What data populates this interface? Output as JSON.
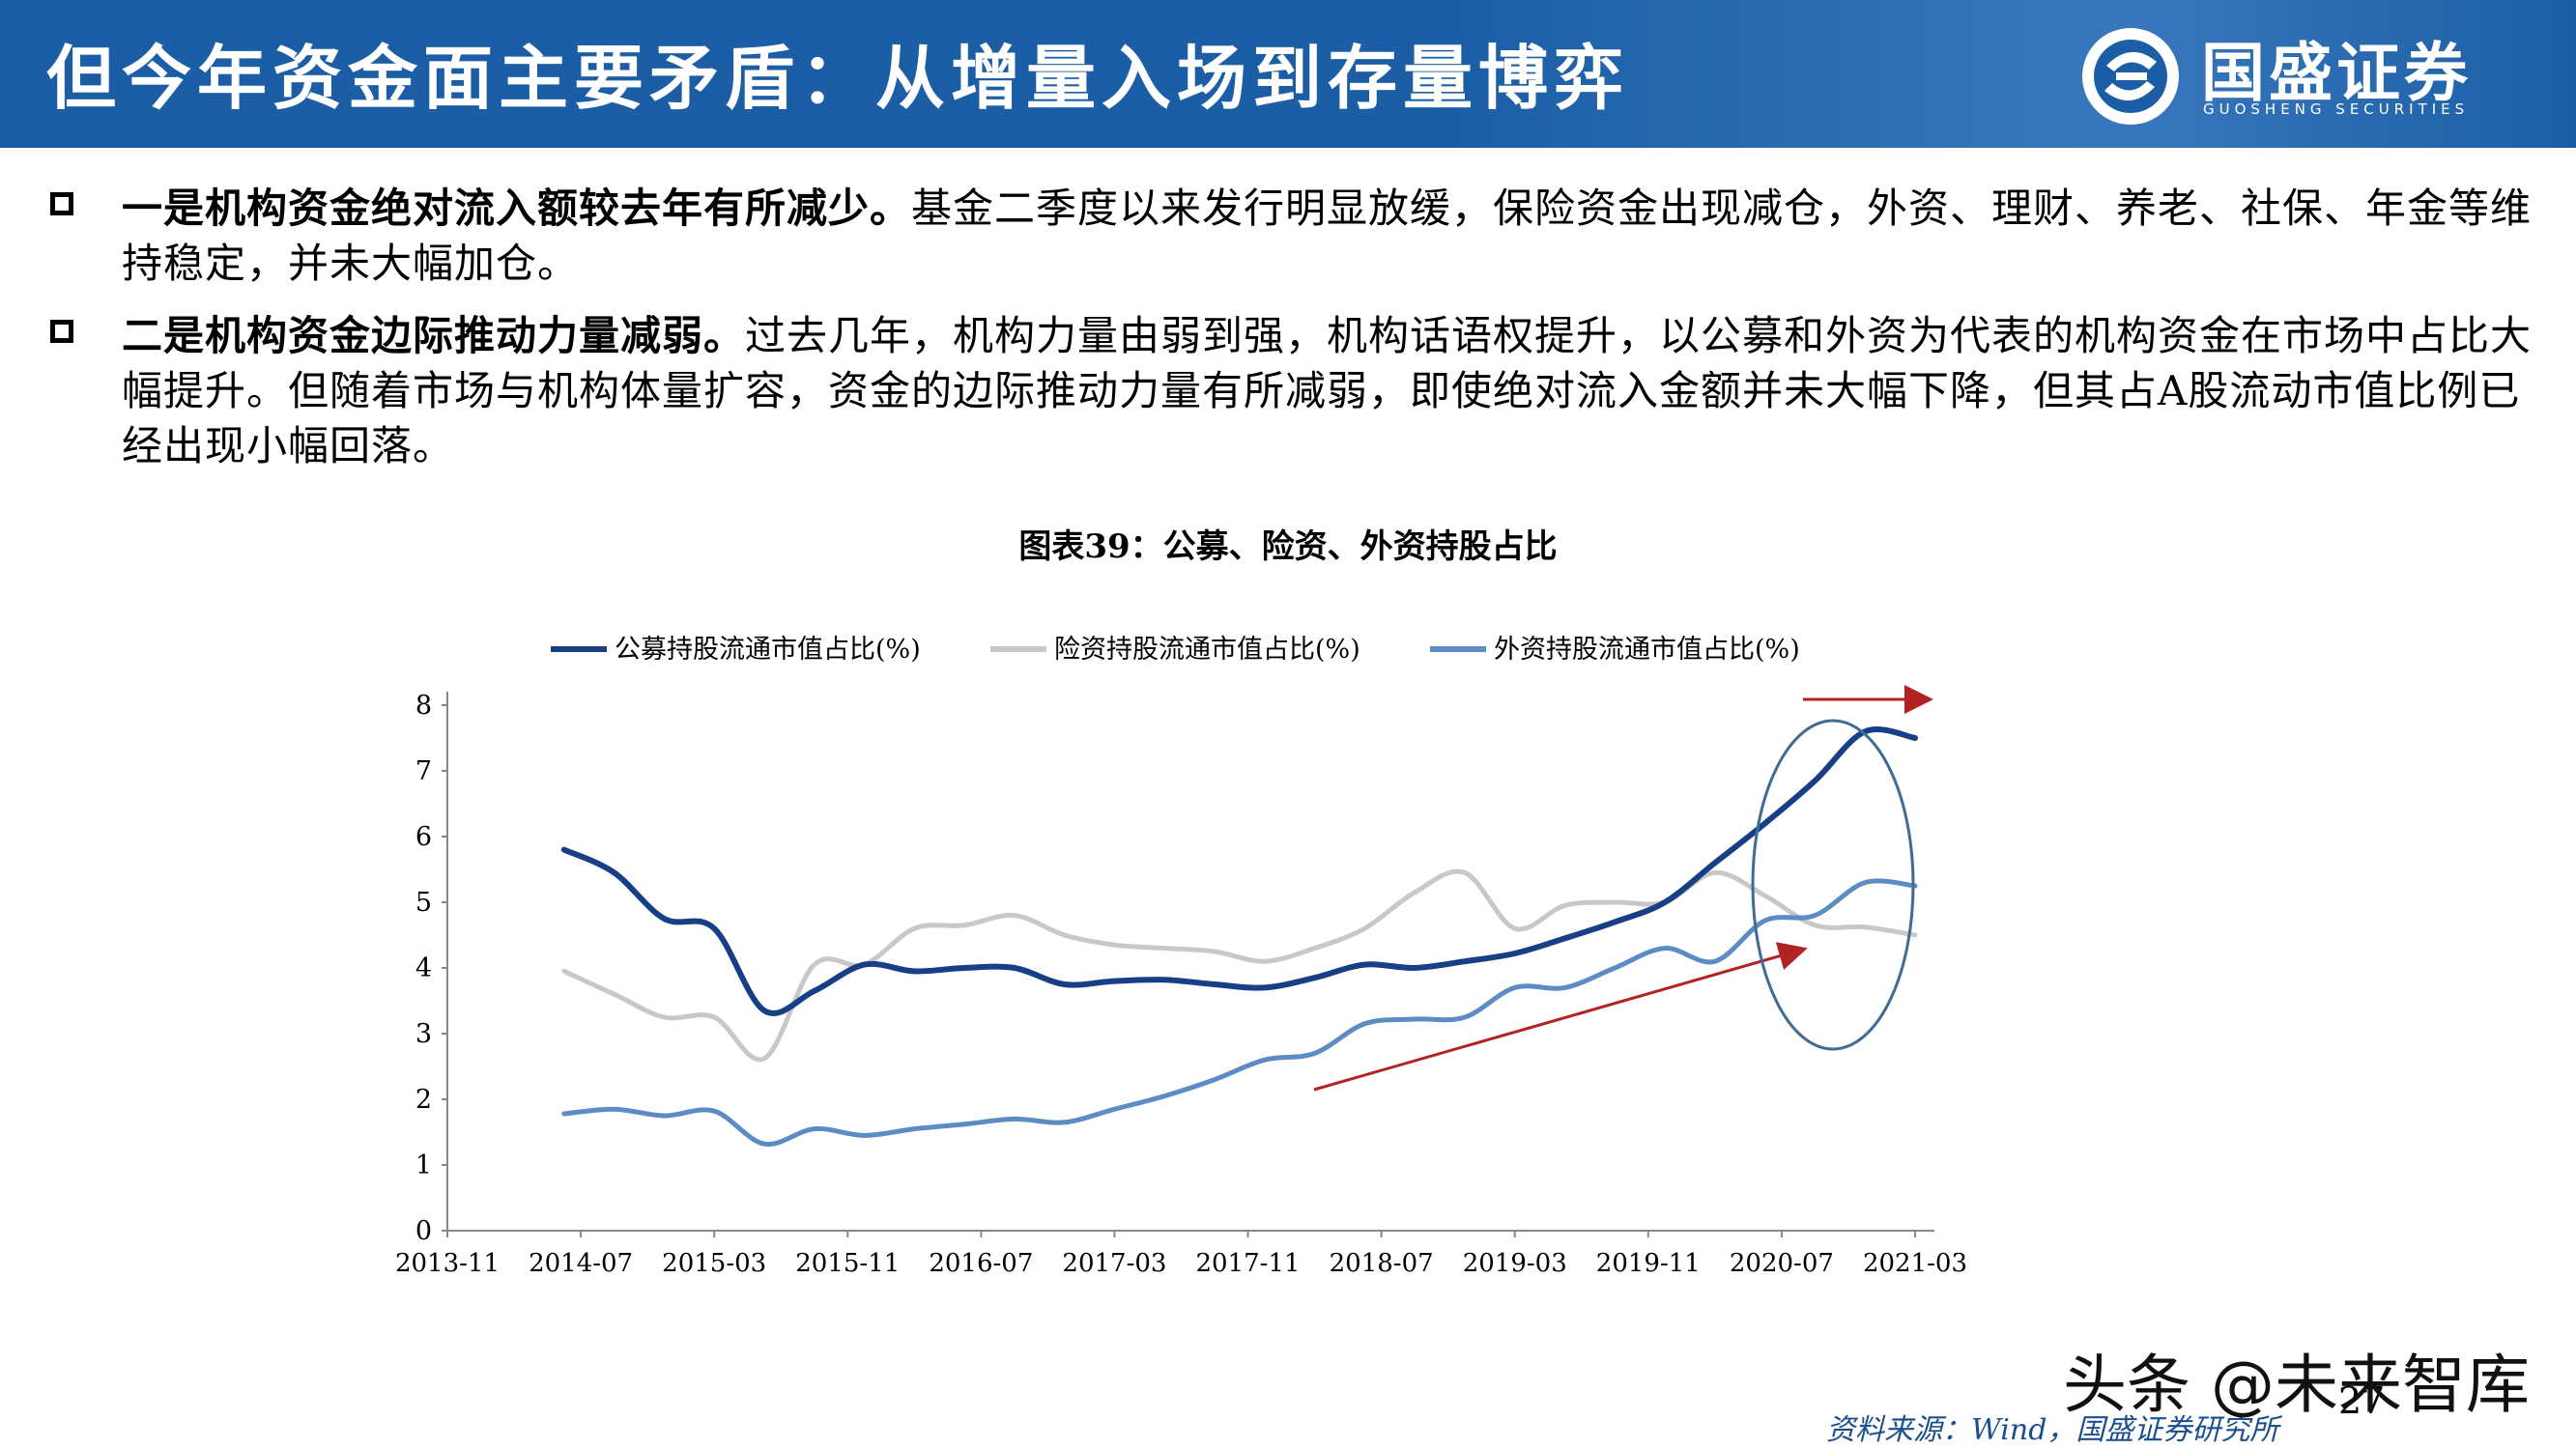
{
  "header": {
    "title": "但今年资金面主要矛盾：从增量入场到存量博弈",
    "logo_name": "国盛证券",
    "logo_sub": "GUOSHENG SECURITIES",
    "logo_icon": "guosheng-logo-icon"
  },
  "bullets": [
    {
      "bold": "一是机构资金绝对流入额较去年有所减少。",
      "text": "基金二季度以来发行明显放缓，保险资金出现减仓，外资、理财、养老、社保、年金等维持稳定，并未大幅加仓。"
    },
    {
      "bold": "二是机构资金边际推动力量减弱。",
      "text": "过去几年，机构力量由弱到强，机构话语权提升，以公募和外资为代表的机构资金在市场中占比大幅提升。但随着市场与机构体量扩容，资金的边际推动力量有所减弱，即使绝对流入金额并未大幅下降，但其占A股流动市值比例已经出现小幅回落。"
    }
  ],
  "figure_title": "图表39：公募、险资、外资持股占比",
  "chart_data": {
    "type": "line",
    "title": "图表39：公募、险资、外资持股占比",
    "xlabel": "",
    "ylabel": "",
    "ylim": [
      0,
      8
    ],
    "yticks": [
      "0",
      "1",
      "2",
      "3",
      "4",
      "5",
      "6",
      "7",
      "8"
    ],
    "xticks": [
      "2013-11",
      "2014-07",
      "2015-03",
      "2015-11",
      "2016-07",
      "2017-03",
      "2017-11",
      "2018-07",
      "2019-03",
      "2019-11",
      "2020-07",
      "2021-03"
    ],
    "x": [
      "2014-06",
      "2014-09",
      "2014-12",
      "2015-03",
      "2015-06",
      "2015-09",
      "2015-12",
      "2016-03",
      "2016-06",
      "2016-09",
      "2016-12",
      "2017-03",
      "2017-06",
      "2017-09",
      "2017-12",
      "2018-03",
      "2018-06",
      "2018-09",
      "2018-12",
      "2019-03",
      "2019-06",
      "2019-09",
      "2019-12",
      "2020-03",
      "2020-06",
      "2020-09",
      "2020-12",
      "2021-03"
    ],
    "legend_position": "top",
    "grid": false,
    "series": [
      {
        "name": "公募持股流通市值占比(%)",
        "color": "#173f86",
        "values": [
          5.8,
          5.45,
          4.75,
          4.6,
          3.35,
          3.65,
          4.05,
          3.95,
          4.0,
          4.0,
          3.75,
          3.8,
          3.82,
          3.75,
          3.7,
          3.85,
          4.05,
          4.0,
          4.1,
          4.22,
          4.45,
          4.7,
          5.0,
          5.6,
          6.2,
          6.85,
          7.6,
          7.5
        ]
      },
      {
        "name": "险资持股流通市值占比(%)",
        "color": "#c8c8c8",
        "values": [
          3.95,
          3.6,
          3.25,
          3.25,
          2.62,
          4.05,
          4.05,
          4.6,
          4.65,
          4.8,
          4.5,
          4.35,
          4.3,
          4.25,
          4.1,
          4.3,
          4.6,
          5.15,
          5.45,
          4.6,
          4.95,
          5.0,
          5.0,
          5.45,
          5.1,
          4.65,
          4.62,
          4.5
        ]
      },
      {
        "name": "外资持股流通市值占比(%)",
        "color": "#5d8bc4",
        "values": [
          1.78,
          1.85,
          1.75,
          1.82,
          1.32,
          1.55,
          1.45,
          1.55,
          1.62,
          1.7,
          1.65,
          1.85,
          2.05,
          2.3,
          2.6,
          2.7,
          3.15,
          3.22,
          3.25,
          3.7,
          3.7,
          4.0,
          4.3,
          4.1,
          4.72,
          4.8,
          5.3,
          5.25
        ]
      }
    ]
  },
  "source": "资料来源：Wind，国盛证券研究所",
  "page_number": "27",
  "watermark": "头条 @未来智库"
}
